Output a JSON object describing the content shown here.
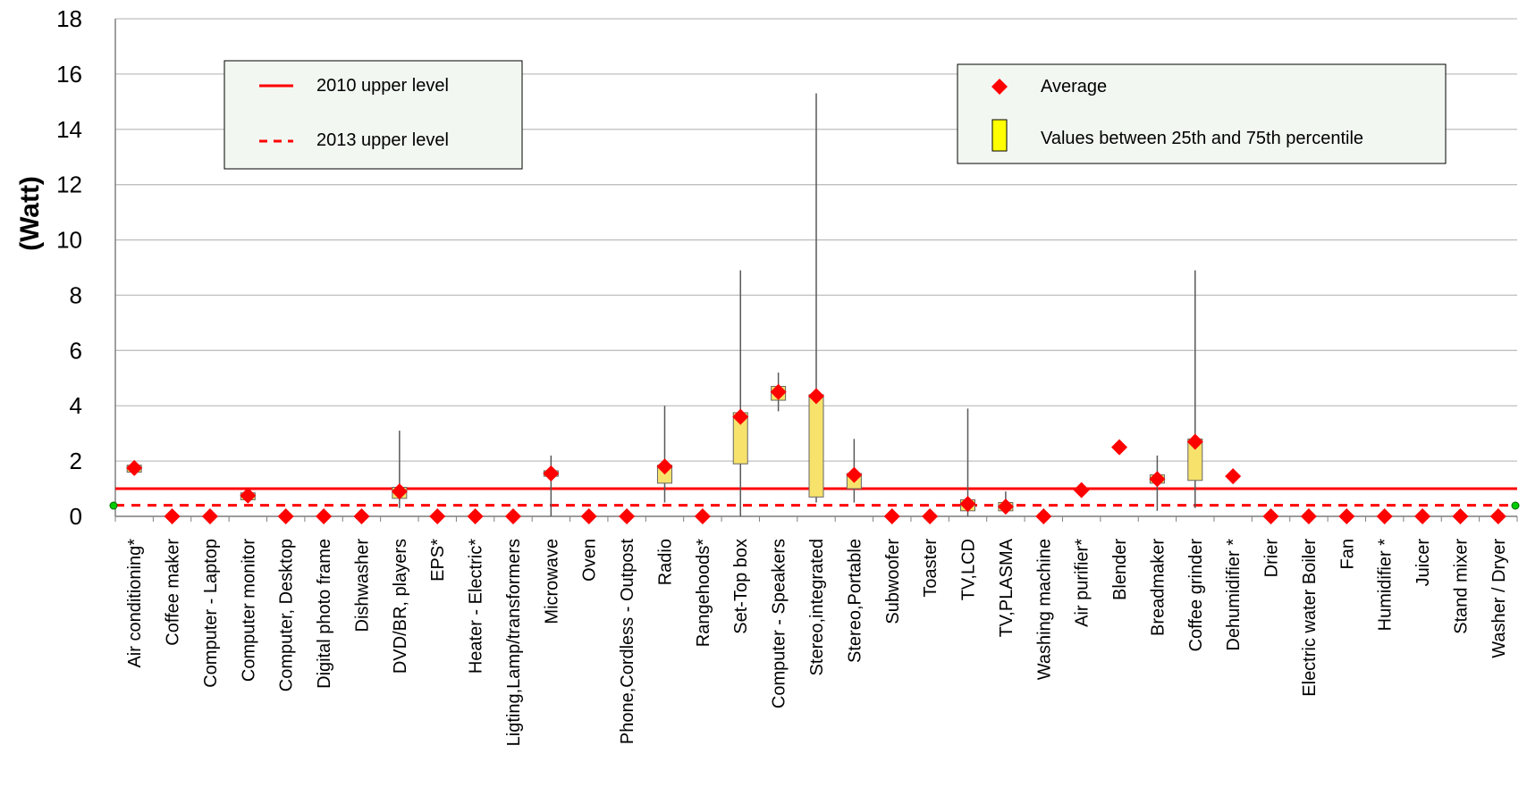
{
  "chart_data": {
    "type": "box",
    "ylabel": "(Watt)",
    "xlabel": "",
    "ylim": [
      0,
      18
    ],
    "yticks": [
      0,
      2,
      4,
      6,
      8,
      10,
      12,
      14,
      16,
      18
    ],
    "grid": true,
    "categories": [
      "Air conditioning*",
      "Coffee maker",
      "Computer - Laptop",
      "Computer monitor",
      "Computer, Desktop",
      "Digital photo frame",
      "Dishwasher",
      "DVD/BR, players",
      "EPS*",
      "Heater - Electric*",
      "Ligting,Lamp/transformers",
      "Microwave",
      "Oven",
      "Phone,Cordless - Outpost",
      "Radio",
      "Rangehoods*",
      "Set-Top box",
      "Computer - Speakers",
      "Stereo,integrated",
      "Stereo,Portable",
      "Subwoofer",
      "Toaster",
      "TV,LCD",
      "TV,PLASMA",
      "Washing machine",
      "Air purifier*",
      "Blender",
      "Breadmaker",
      "Coffee grinder",
      "Dehumidifier *",
      "Drier",
      "Electric water Boiler",
      "Fan",
      "Humidifier *",
      "Juicer",
      "Stand mixer",
      "Washer / Dryer"
    ],
    "average": [
      1.75,
      0,
      0,
      0.75,
      0,
      0,
      0,
      0.9,
      0,
      0,
      0,
      1.55,
      0,
      0,
      1.8,
      0,
      3.6,
      4.5,
      4.35,
      1.5,
      0,
      0,
      0.45,
      0.35,
      0,
      0.95,
      2.5,
      1.35,
      2.7,
      1.45,
      0,
      0,
      0,
      0,
      0,
      0,
      0
    ],
    "q1": [
      1.6,
      null,
      null,
      0.6,
      null,
      null,
      null,
      0.65,
      null,
      null,
      null,
      1.45,
      null,
      null,
      1.2,
      null,
      1.9,
      4.2,
      0.7,
      1.0,
      null,
      null,
      0.2,
      0.2,
      null,
      null,
      null,
      1.2,
      1.3,
      null,
      null,
      null,
      null,
      null,
      null,
      null,
      null
    ],
    "q3": [
      1.85,
      null,
      null,
      0.85,
      null,
      null,
      null,
      1.05,
      null,
      null,
      null,
      1.65,
      null,
      null,
      1.85,
      null,
      3.75,
      4.7,
      4.4,
      1.55,
      null,
      null,
      0.6,
      0.5,
      null,
      null,
      null,
      1.5,
      2.8,
      null,
      null,
      null,
      null,
      null,
      null,
      null,
      null
    ],
    "min": [
      null,
      null,
      null,
      null,
      null,
      null,
      null,
      0.3,
      null,
      null,
      null,
      0.0,
      null,
      null,
      0.5,
      null,
      0.0,
      3.8,
      0.5,
      0.5,
      null,
      null,
      0.0,
      0.1,
      null,
      null,
      null,
      0.2,
      0.3,
      null,
      null,
      null,
      null,
      null,
      null,
      null,
      null
    ],
    "max": [
      null,
      null,
      null,
      2.0,
      null,
      null,
      null,
      3.1,
      null,
      null,
      null,
      2.2,
      null,
      null,
      4.0,
      null,
      8.9,
      5.2,
      15.3,
      2.8,
      null,
      null,
      3.9,
      0.9,
      null,
      null,
      null,
      2.2,
      8.9,
      null,
      null,
      null,
      null,
      null,
      null,
      null,
      null
    ],
    "reference_lines": [
      {
        "name": "2010 upper level",
        "value": 1.0,
        "style": "solid",
        "color": "#ff0000"
      },
      {
        "name": "2013 upper level",
        "value": 0.4,
        "style": "dashed",
        "color": "#ff0000"
      }
    ],
    "legend": {
      "lines": [
        "2010 upper level",
        "2013 upper level"
      ],
      "markers": [
        "Average",
        "Values between 25th and 75th  percentile"
      ],
      "placement": [
        "top-left",
        "top-right"
      ]
    },
    "colors": {
      "average_marker": "#ff0000",
      "box_fill": "#f7e26b",
      "legend_box_fill": "#ffff00",
      "legend_bg": "#f2f7f2",
      "grid": "#bfbfbf",
      "axis": "#808080",
      "whisker": "#595959",
      "endpoint_marker": "#00cc00"
    }
  }
}
